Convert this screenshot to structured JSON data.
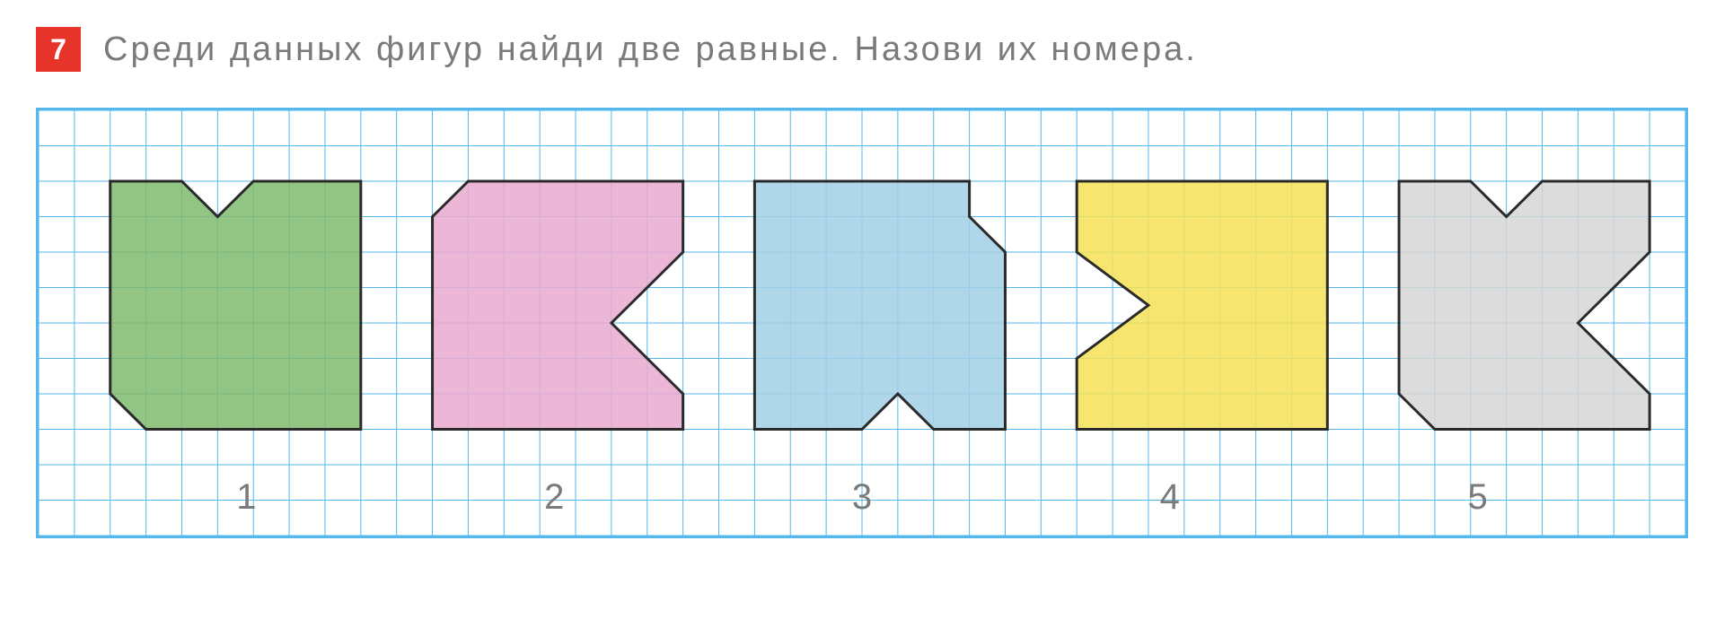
{
  "exercise_number": "7",
  "prompt": "Среди  данных  фигур  найди  две  равные.  Назови  их  номера.",
  "badge": {
    "bg": "#e6342a",
    "fg": "#ffffff"
  },
  "prompt_color": "#7a7a7a",
  "canvas": {
    "grid_color": "#56b7ea",
    "border_color": "#56b7ea",
    "cell": 40,
    "cols": 46,
    "rows": 12
  },
  "shape_stroke": "#2a2a2a",
  "shapes": [
    {
      "label": "1",
      "fill": "#7fba6e",
      "points": [
        [
          2,
          2
        ],
        [
          4,
          2
        ],
        [
          5,
          3
        ],
        [
          6,
          2
        ],
        [
          9,
          2
        ],
        [
          9,
          9
        ],
        [
          3,
          9
        ],
        [
          2,
          8
        ]
      ]
    },
    {
      "label": "2",
      "fill": "#e9a9d0",
      "points": [
        [
          11,
          3
        ],
        [
          12,
          2
        ],
        [
          18,
          2
        ],
        [
          18,
          4
        ],
        [
          16,
          6
        ],
        [
          18,
          8
        ],
        [
          18,
          9
        ],
        [
          11,
          9
        ]
      ]
    },
    {
      "label": "3",
      "fill": "#a2cfe6",
      "points": [
        [
          20,
          2
        ],
        [
          26,
          2
        ],
        [
          26,
          3
        ],
        [
          27,
          4
        ],
        [
          27,
          9
        ],
        [
          25,
          9
        ],
        [
          24,
          8
        ],
        [
          23,
          9
        ],
        [
          20,
          9
        ]
      ]
    },
    {
      "label": "4",
      "fill": "#f4e257",
      "points": [
        [
          29,
          2
        ],
        [
          36,
          2
        ],
        [
          36,
          9
        ],
        [
          29,
          9
        ],
        [
          29,
          7
        ],
        [
          31,
          5.5
        ],
        [
          29,
          4
        ]
      ]
    },
    {
      "label": "5",
      "fill": "#d6d6d6",
      "points": [
        [
          38,
          2
        ],
        [
          40,
          2
        ],
        [
          41,
          3
        ],
        [
          42,
          2
        ],
        [
          45,
          2
        ],
        [
          45,
          4
        ],
        [
          43,
          6
        ],
        [
          45,
          8
        ],
        [
          45,
          9
        ],
        [
          39,
          9
        ],
        [
          38,
          8
        ]
      ]
    }
  ],
  "label_color": "#7a7a7a"
}
